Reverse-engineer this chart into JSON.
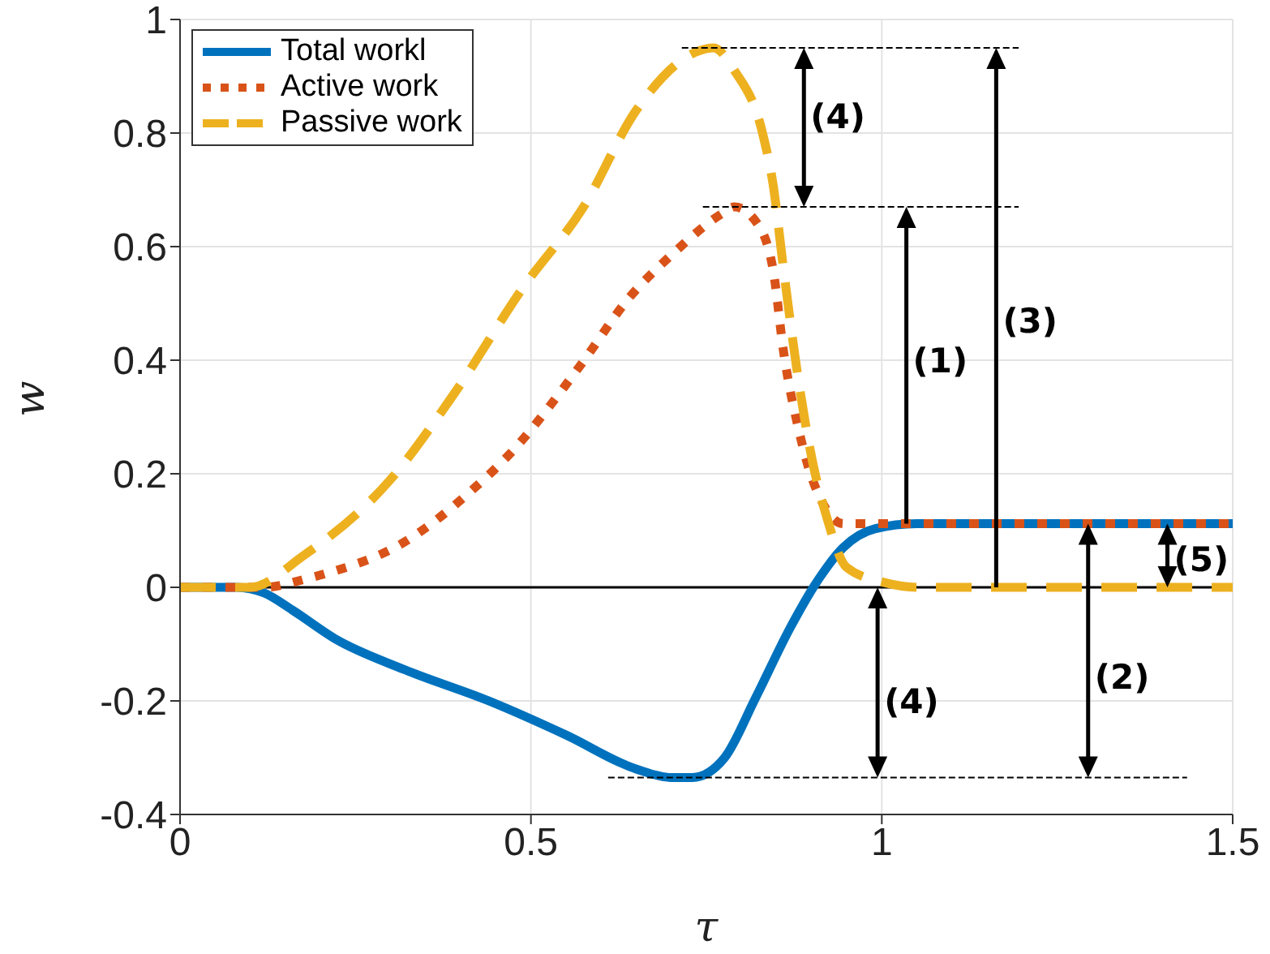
{
  "chart_data": {
    "type": "line",
    "xlabel": "τ",
    "ylabel": "w",
    "xlim": [
      0,
      1.5
    ],
    "xticks": [
      0,
      0.5,
      1,
      1.5
    ],
    "ylim": [
      -0.4,
      1
    ],
    "yticks": [
      -0.4,
      -0.2,
      0,
      0.2,
      0.4,
      0.6,
      0.8,
      1
    ],
    "grid": true,
    "legend": "top left",
    "series": [
      {
        "name": "Total workl",
        "color": "#0072bd",
        "line_style": "solid",
        "x": [
          0,
          0.08,
          0.12,
          0.16,
          0.22,
          0.32,
          0.44,
          0.55,
          0.65,
          0.7,
          0.73,
          0.776,
          0.82,
          0.87,
          0.905,
          0.945,
          0.99,
          1.05,
          1.5
        ],
        "values": [
          0,
          0,
          -0.01,
          -0.04,
          -0.09,
          -0.145,
          -0.2,
          -0.26,
          -0.32,
          -0.335,
          -0.335,
          -0.3,
          -0.195,
          -0.07,
          0.005,
          0.07,
          0.103,
          0.112,
          0.112
        ]
      },
      {
        "name": "Active work",
        "color": "#d95319",
        "line_style": "dotted",
        "x": [
          0,
          0.12,
          0.18,
          0.21,
          0.32,
          0.415,
          0.47,
          0.57,
          0.64,
          0.7,
          0.775,
          0.79,
          0.82,
          0.845,
          0.86,
          0.883,
          0.89,
          0.915,
          0.945,
          1.5
        ],
        "values": [
          0,
          0,
          0.015,
          0.025,
          0.08,
          0.17,
          0.235,
          0.39,
          0.51,
          0.585,
          0.66,
          0.67,
          0.645,
          0.56,
          0.415,
          0.27,
          0.235,
          0.15,
          0.112,
          0.112
        ]
      },
      {
        "name": "Passive work",
        "color": "#edb120",
        "line_style": "dashed",
        "x": [
          0,
          0.1,
          0.175,
          0.3,
          0.39,
          0.49,
          0.575,
          0.65,
          0.74,
          0.76,
          0.79,
          0.83,
          0.845,
          0.86,
          0.883,
          0.905,
          0.92,
          0.95,
          1.005,
          1.05,
          1.5
        ],
        "values": [
          0,
          0,
          0.055,
          0.19,
          0.34,
          0.53,
          0.67,
          0.84,
          0.945,
          0.95,
          0.91,
          0.8,
          0.71,
          0.56,
          0.35,
          0.2,
          0.13,
          0.035,
          0.008,
          0,
          0
        ]
      },
      {
        "type": "line",
        "color": "#000000",
        "line_style": "dashed",
        "x": [
          0.715,
          1.195
        ],
        "values": [
          0.95,
          0.95
        ]
      },
      {
        "type": "line",
        "color": "#000000",
        "line_style": "dashed",
        "x": [
          0.745,
          1.195
        ],
        "values": [
          0.67,
          0.67
        ]
      },
      {
        "type": "line",
        "color": "#000000",
        "line_style": "dashed",
        "x": [
          0.61,
          1.435
        ],
        "values": [
          -0.335,
          -0.335
        ]
      }
    ],
    "ref_lines": [
      {
        "axis": "y",
        "value": 0,
        "color": "#000000",
        "line_style": "solid"
      }
    ],
    "annotations": [
      "(4)",
      "(1)",
      "(3)",
      "(5)",
      "(4)",
      "(2)"
    ]
  }
}
